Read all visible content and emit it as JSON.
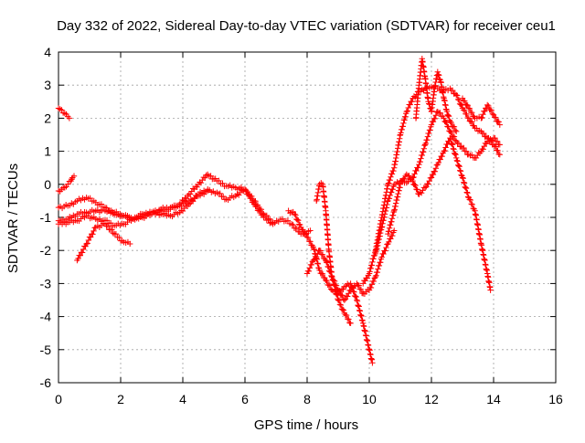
{
  "chart_data": {
    "type": "scatter",
    "title": "Day 332 of 2022, Sidereal Day-to-day VTEC variation (SDTVAR) for receiver ceu1",
    "xlabel": "GPS time / hours",
    "ylabel": "SDTVAR / TECUs",
    "xlim": [
      0,
      16
    ],
    "ylim": [
      -6,
      4
    ],
    "x_ticks": [
      "0",
      "2",
      "4",
      "6",
      "8",
      "10",
      "12",
      "14",
      "16"
    ],
    "y_ticks": [
      "-6",
      "-5",
      "-4",
      "-3",
      "-2",
      "-1",
      "0",
      "1",
      "2",
      "3",
      "4"
    ],
    "grid": true,
    "marker": "+",
    "series_color": "#ff0000",
    "series": [
      {
        "x": [
          0.0,
          0.1,
          0.2,
          0.3,
          0.35
        ],
        "y": [
          2.3,
          2.25,
          2.15,
          2.05,
          2.0
        ]
      },
      {
        "x": [
          0.0,
          0.1,
          0.2,
          0.3,
          0.4,
          0.45,
          0.5
        ],
        "y": [
          -0.2,
          -0.15,
          -0.1,
          0.0,
          0.1,
          0.2,
          0.25
        ]
      },
      {
        "x": [
          0.0,
          0.3,
          0.6,
          0.9,
          1.2,
          1.5,
          1.8,
          2.1,
          2.4,
          2.7,
          3.0,
          3.3,
          3.6,
          3.9,
          4.2,
          4.5,
          4.8,
          5.1,
          5.4,
          5.7,
          6.0,
          6.3,
          6.6,
          6.9,
          7.2,
          7.5,
          7.8,
          8.1
        ],
        "y": [
          -0.7,
          -0.65,
          -0.5,
          -0.4,
          -0.55,
          -0.7,
          -0.9,
          -0.95,
          -1.05,
          -1.0,
          -0.9,
          -0.8,
          -0.75,
          -0.6,
          -0.3,
          0.0,
          0.3,
          0.1,
          -0.05,
          -0.1,
          -0.15,
          -0.6,
          -1.0,
          -1.2,
          -1.05,
          -1.2,
          -1.5,
          -1.4
        ]
      },
      {
        "x": [
          0.0,
          0.3,
          0.6,
          0.9,
          1.2,
          1.5,
          1.8,
          2.1,
          2.4,
          2.7,
          3.0,
          3.3,
          3.6,
          3.9,
          4.2,
          4.5,
          4.8,
          5.1,
          5.4,
          5.7,
          6.0,
          6.3,
          6.6,
          6.9
        ],
        "y": [
          -1.1,
          -1.05,
          -0.9,
          -0.85,
          -0.8,
          -0.8,
          -0.85,
          -0.95,
          -1.05,
          -0.95,
          -0.85,
          -0.75,
          -0.7,
          -0.65,
          -0.5,
          -0.35,
          -0.2,
          -0.25,
          -0.45,
          -0.35,
          -0.15,
          -0.5,
          -0.9,
          -1.15
        ]
      },
      {
        "x": [
          0.0,
          0.3,
          0.6,
          0.9,
          1.2,
          1.5,
          1.8,
          2.1,
          2.4,
          2.7,
          3.0,
          3.3,
          3.6,
          3.9,
          4.2,
          4.5,
          4.8
        ],
        "y": [
          -1.2,
          -1.15,
          -1.1,
          -0.95,
          -1.05,
          -1.1,
          -1.25,
          -1.2,
          -1.05,
          -0.9,
          -0.85,
          -0.9,
          -0.95,
          -0.85,
          -0.6,
          -0.3,
          -0.15
        ]
      },
      {
        "x": [
          0.6,
          0.9,
          1.2,
          1.5,
          1.8,
          2.1,
          2.3
        ],
        "y": [
          -2.3,
          -1.8,
          -1.3,
          -1.2,
          -1.5,
          -1.75,
          -1.8
        ]
      },
      {
        "x": [
          7.4,
          7.6,
          7.8,
          8.0,
          8.2,
          8.4,
          8.6,
          8.8,
          9.0,
          9.2,
          9.4,
          9.6,
          9.8,
          10.0,
          10.1
        ],
        "y": [
          -0.8,
          -0.9,
          -1.3,
          -1.6,
          -1.9,
          -2.6,
          -2.9,
          -3.2,
          -3.3,
          -3.1,
          -3.0,
          -3.5,
          -4.2,
          -5.0,
          -5.4
        ]
      },
      {
        "x": [
          8.0,
          8.2,
          8.4,
          8.6,
          8.8,
          9.0,
          9.2,
          9.4,
          9.6,
          9.8,
          10.0,
          10.2,
          10.4,
          10.6,
          10.8
        ],
        "y": [
          -2.7,
          -2.3,
          -2.0,
          -2.3,
          -2.8,
          -3.2,
          -3.5,
          -3.2,
          -3.0,
          -3.3,
          -3.2,
          -2.8,
          -2.2,
          -1.8,
          -1.4
        ]
      },
      {
        "x": [
          8.3,
          8.4,
          8.5,
          8.6,
          8.7,
          8.8,
          9.0,
          9.2,
          9.4
        ],
        "y": [
          -0.5,
          0.0,
          0.0,
          -0.8,
          -2.0,
          -2.8,
          -3.5,
          -3.9,
          -4.2
        ]
      },
      {
        "x": [
          9.8,
          10.0,
          10.2,
          10.4,
          10.6,
          10.8,
          11.0,
          11.2,
          11.4,
          11.6,
          11.8,
          12.0,
          12.2,
          12.4,
          12.6,
          12.8,
          13.0,
          13.2,
          13.4,
          13.6,
          13.8,
          14.0,
          14.2
        ],
        "y": [
          -3.0,
          -2.7,
          -2.0,
          -1.0,
          0.0,
          0.5,
          1.5,
          2.2,
          2.6,
          2.8,
          2.9,
          2.95,
          2.9,
          2.85,
          2.9,
          2.7,
          2.3,
          2.0,
          1.7,
          1.6,
          1.4,
          1.2,
          0.9
        ]
      },
      {
        "x": [
          10.2,
          10.4,
          10.6,
          10.8,
          11.0,
          11.2,
          11.4,
          11.6,
          11.8,
          12.0,
          12.2,
          12.4,
          12.6,
          12.8,
          13.0,
          13.2,
          13.4,
          13.6,
          13.8,
          14.0,
          14.2
        ],
        "y": [
          -2.1,
          -1.3,
          -0.5,
          0.0,
          0.1,
          0.05,
          0.2,
          0.6,
          1.2,
          1.8,
          2.2,
          2.0,
          1.6,
          1.3,
          1.1,
          0.9,
          0.8,
          1.0,
          1.3,
          1.4,
          1.2
        ]
      },
      {
        "x": [
          11.5,
          11.6,
          11.7,
          11.8,
          11.9,
          12.0,
          12.1,
          12.2,
          12.3,
          12.4,
          12.5,
          12.6,
          12.8
        ],
        "y": [
          2.0,
          3.0,
          3.8,
          3.2,
          2.5,
          2.2,
          2.9,
          3.4,
          3.1,
          2.6,
          2.2,
          1.9,
          1.6
        ]
      },
      {
        "x": [
          10.6,
          10.8,
          11.0,
          11.2,
          11.4,
          11.6,
          11.8,
          12.0,
          12.2,
          12.4,
          12.6,
          12.8,
          13.0,
          13.2,
          13.4,
          13.6,
          13.8,
          13.9
        ],
        "y": [
          -1.5,
          -0.8,
          0.0,
          0.3,
          0.1,
          -0.3,
          -0.1,
          0.2,
          0.6,
          1.0,
          1.4,
          0.8,
          0.2,
          -0.4,
          -0.8,
          -1.8,
          -2.7,
          -3.2
        ]
      },
      {
        "x": [
          13.0,
          13.2,
          13.4,
          13.6,
          13.8,
          14.0,
          14.2
        ],
        "y": [
          2.6,
          2.3,
          2.0,
          2.0,
          2.4,
          2.1,
          1.8
        ]
      }
    ]
  }
}
